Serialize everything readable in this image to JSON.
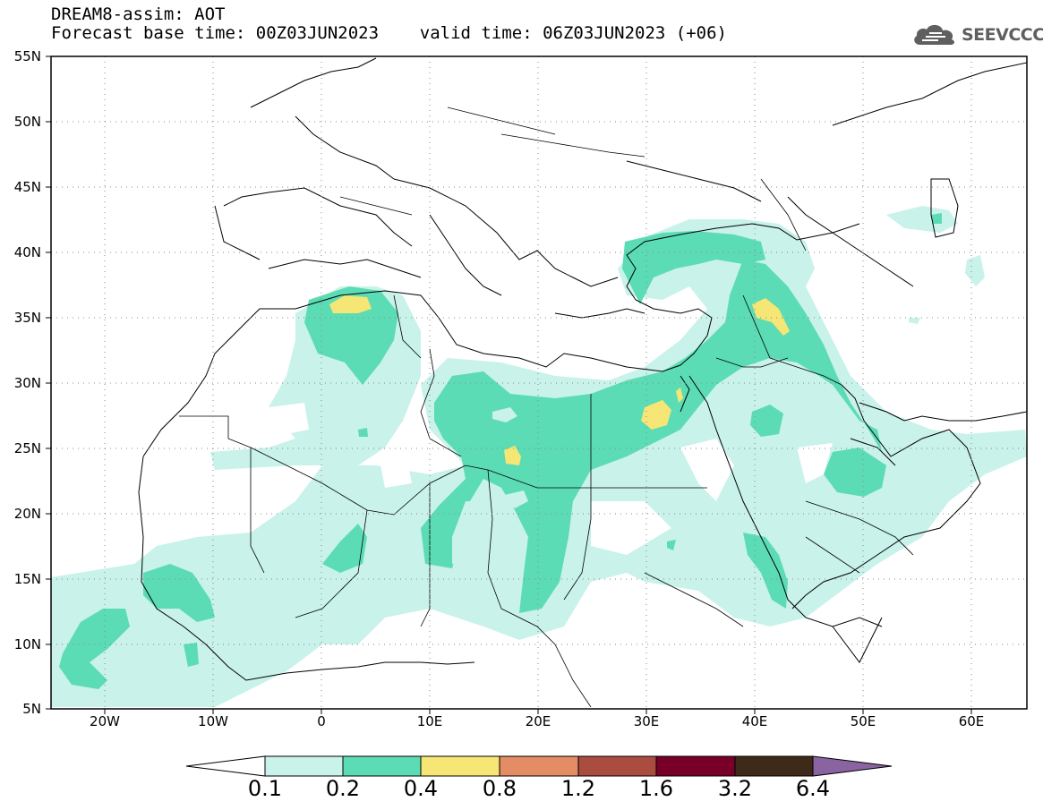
{
  "header": {
    "line1": "DREAM8-assim: AOT",
    "line2": "Forecast base time: 00Z03JUN2023    valid time: 06Z03JUN2023 (+06)"
  },
  "logo": {
    "icon": "cloud-icon",
    "text": "SEEVCCC"
  },
  "map": {
    "variable": "AOT",
    "projection": "lat-lon",
    "lon_range": [
      -25,
      65
    ],
    "lat_range": [
      5,
      55
    ],
    "lat_ticks": [
      "55N",
      "50N",
      "45N",
      "40N",
      "35N",
      "30N",
      "25N",
      "20N",
      "15N",
      "10N",
      "5N"
    ],
    "lon_ticks": [
      "20W",
      "10W",
      "0",
      "10E",
      "20E",
      "30E",
      "40E",
      "50E",
      "60E"
    ],
    "grid": "dotted"
  },
  "colorbar": {
    "levels": [
      "0.1",
      "0.2",
      "0.4",
      "0.8",
      "1.2",
      "1.6",
      "3.2",
      "6.4"
    ],
    "colors": {
      "below": "#ffffff",
      "c1": "#c8f2ea",
      "c2": "#5cdcb4",
      "c3": "#f5e676",
      "c4": "#e48c64",
      "c5": "#aa4c40",
      "c6": "#780028",
      "c7": "#3e2a18",
      "above": "#8a64a0"
    }
  }
}
